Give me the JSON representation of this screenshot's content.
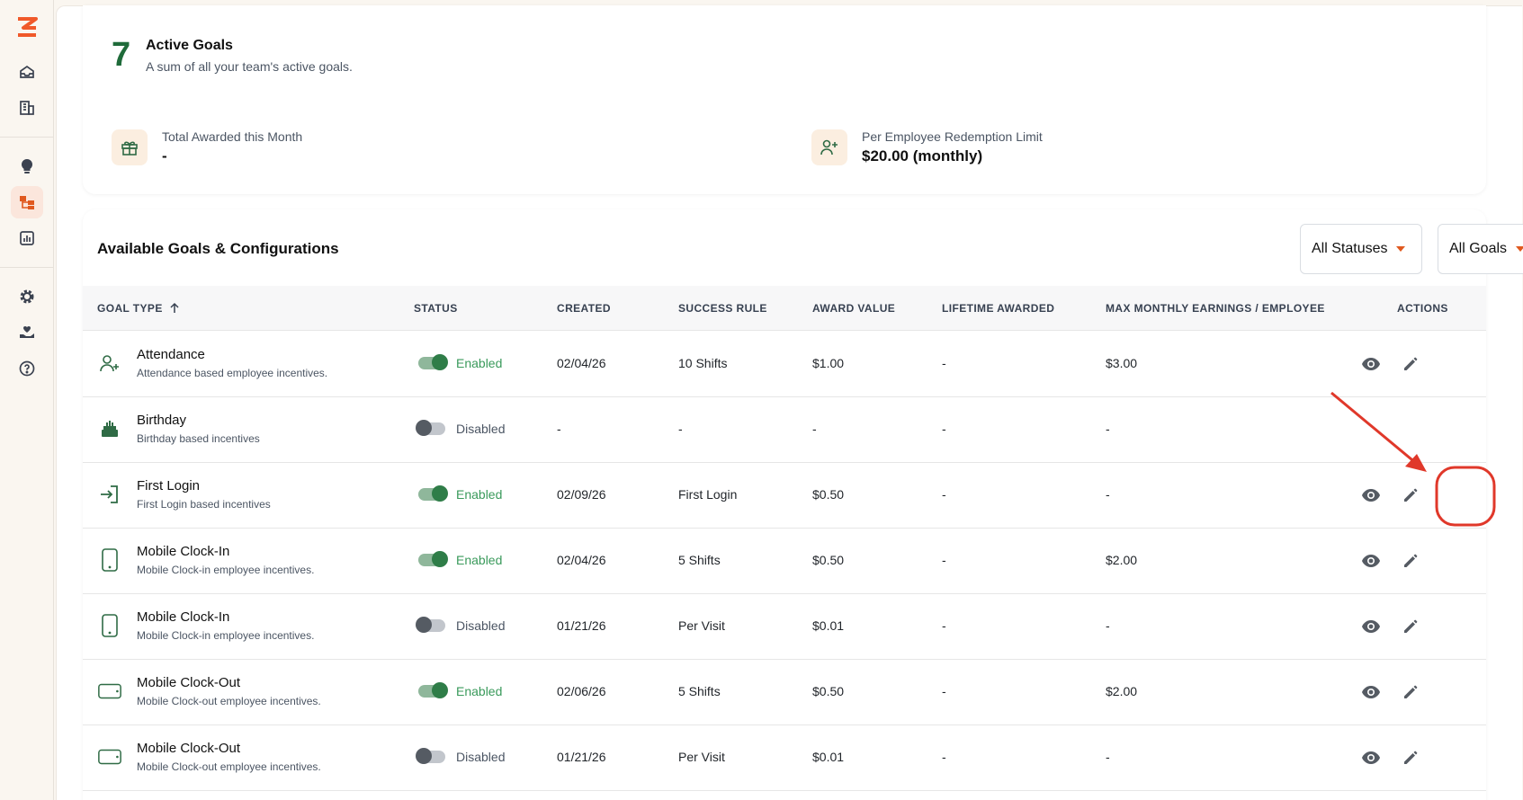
{
  "sidebar": {
    "icons": [
      "logo-icon",
      "inbox-icon",
      "building-icon",
      "lightbulb-icon",
      "hierarchy-icon",
      "report-icon",
      "gear-icon",
      "hand-heart-icon",
      "help-icon"
    ],
    "active_item": "hierarchy-icon"
  },
  "summary": {
    "active_count": "7",
    "active_title": "Active Goals",
    "active_subtitle": "A sum of all your team's active goals.",
    "total_awarded_label": "Total Awarded this Month",
    "total_awarded_value": "-",
    "limit_label": "Per Employee Redemption Limit",
    "limit_value": "$20.00 (monthly)"
  },
  "goals": {
    "title": "Available Goals & Configurations",
    "filters": {
      "status": "All Statuses",
      "goals": "All Goals"
    },
    "columns": {
      "goal_type": "GOAL TYPE",
      "status": "STATUS",
      "created": "CREATED",
      "success_rule": "SUCCESS RULE",
      "award_value": "AWARD VALUE",
      "lifetime_awarded": "LIFETIME AWARDED",
      "max_monthly": "MAX MONTHLY EARNINGS / EMPLOYEE",
      "actions": "ACTIONS"
    },
    "rows": [
      {
        "icon": "user-plus-icon",
        "name": "Attendance",
        "desc": "Attendance based employee incentives.",
        "enabled": true,
        "status": "Enabled",
        "created": "02/04/26",
        "rule": "10 Shifts",
        "award": "$1.00",
        "lifetime": "-",
        "max": "$3.00",
        "actions": true
      },
      {
        "icon": "cake-icon",
        "name": "Birthday",
        "desc": "Birthday based incentives",
        "enabled": false,
        "status": "Disabled",
        "created": "-",
        "rule": "-",
        "award": "-",
        "lifetime": "-",
        "max": "-",
        "actions": false
      },
      {
        "icon": "login-icon",
        "name": "First Login",
        "desc": "First Login based incentives",
        "enabled": true,
        "status": "Enabled",
        "created": "02/09/26",
        "rule": "First Login",
        "award": "$0.50",
        "lifetime": "-",
        "max": "-",
        "actions": true
      },
      {
        "icon": "phone-portrait-icon",
        "name": "Mobile Clock-In",
        "desc": "Mobile Clock-in employee incentives.",
        "enabled": true,
        "status": "Enabled",
        "created": "02/04/26",
        "rule": "5 Shifts",
        "award": "$0.50",
        "lifetime": "-",
        "max": "$2.00",
        "actions": true
      },
      {
        "icon": "phone-portrait-icon",
        "name": "Mobile Clock-In",
        "desc": "Mobile Clock-in employee incentives.",
        "enabled": false,
        "status": "Disabled",
        "created": "01/21/26",
        "rule": "Per Visit",
        "award": "$0.01",
        "lifetime": "-",
        "max": "-",
        "actions": true
      },
      {
        "icon": "phone-landscape-icon",
        "name": "Mobile Clock-Out",
        "desc": "Mobile Clock-out employee incentives.",
        "enabled": true,
        "status": "Enabled",
        "created": "02/06/26",
        "rule": "5 Shifts",
        "award": "$0.50",
        "lifetime": "-",
        "max": "$2.00",
        "actions": true
      },
      {
        "icon": "phone-landscape-icon",
        "name": "Mobile Clock-Out",
        "desc": "Mobile Clock-out employee incentives.",
        "enabled": false,
        "status": "Disabled",
        "created": "01/21/26",
        "rule": "Per Visit",
        "award": "$0.01",
        "lifetime": "-",
        "max": "-",
        "actions": true
      }
    ]
  },
  "colors": {
    "accent": "#e0591f",
    "brand_green": "#1f6b3a",
    "enabled_text": "#3a9a5b",
    "annotation_red": "#e0382a"
  }
}
